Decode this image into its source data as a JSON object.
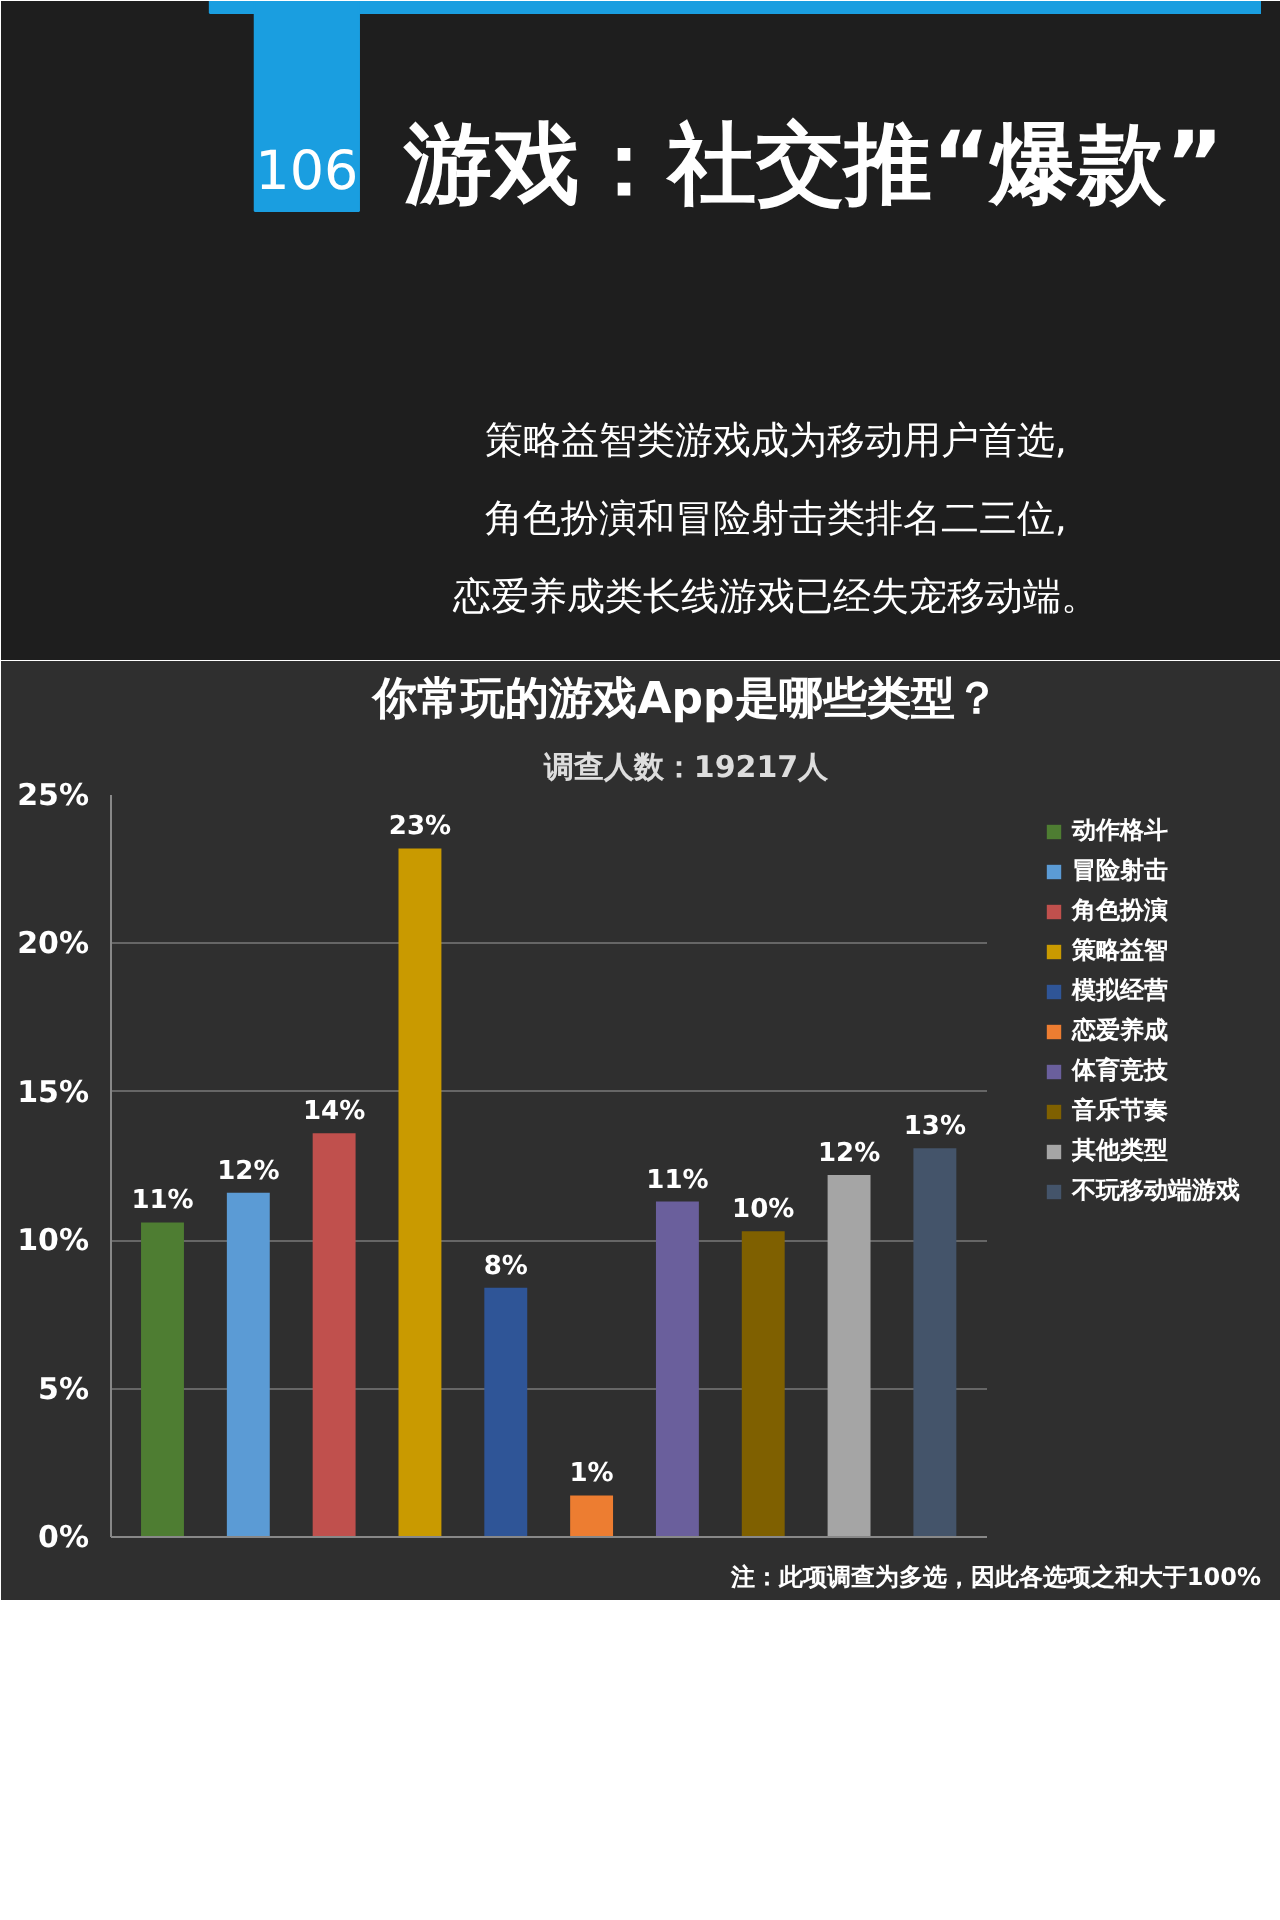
{
  "chart_data": {
    "type": "bar",
    "title": "你常玩的游戏App是哪些类型？",
    "subtitle": "调查人数：19217人",
    "annotations": [
      "106",
      "游戏：社交推“爆款”",
      "策略益智类游戏成为移动用户首选,",
      "角色扮演和冒险射击类排名二三位,",
      "恋爱养成类长线游戏已经失宠移动端。",
      "注：此项调查为多选，因此各选项之和大于100%"
    ],
    "categories": [
      null,
      null,
      null,
      null,
      null,
      null,
      null,
      null,
      null,
      null
    ],
    "series": [
      {
        "name": "动作格斗",
        "color": "#4e7d32",
        "values": [
          10.6,
          null,
          null,
          null,
          null,
          null,
          null,
          null,
          null,
          null
        ],
        "value_labels": [
          "11%",
          null,
          null,
          null,
          null,
          null,
          null,
          null,
          null,
          null
        ]
      },
      {
        "name": "冒险射击",
        "color": "#5b9bd5",
        "values": [
          null,
          11.6,
          null,
          null,
          null,
          null,
          null,
          null,
          null,
          null
        ],
        "value_labels": [
          null,
          "12%",
          null,
          null,
          null,
          null,
          null,
          null,
          null,
          null
        ]
      },
      {
        "name": "角色扮演",
        "color": "#c0504d",
        "values": [
          null,
          null,
          13.6,
          null,
          null,
          null,
          null,
          null,
          null,
          null
        ],
        "value_labels": [
          null,
          null,
          "14%",
          null,
          null,
          null,
          null,
          null,
          null,
          null
        ]
      },
      {
        "name": "策略益智",
        "color": "#c99a00",
        "values": [
          null,
          null,
          null,
          23.2,
          null,
          null,
          null,
          null,
          null,
          null
        ],
        "value_labels": [
          null,
          null,
          null,
          "23%",
          null,
          null,
          null,
          null,
          null,
          null
        ]
      },
      {
        "name": "模拟经营",
        "color": "#2f5597",
        "values": [
          null,
          null,
          null,
          null,
          8.4,
          null,
          null,
          null,
          null,
          null
        ],
        "value_labels": [
          null,
          null,
          null,
          null,
          "8%",
          null,
          null,
          null,
          null,
          null
        ]
      },
      {
        "name": "恋爱养成",
        "color": "#ed7d31",
        "values": [
          null,
          null,
          null,
          null,
          null,
          1.4,
          null,
          null,
          null,
          null
        ],
        "value_labels": [
          null,
          null,
          null,
          null,
          null,
          "1%",
          null,
          null,
          null,
          null
        ]
      },
      {
        "name": "体育竞技",
        "color": "#6a5f9c",
        "values": [
          null,
          null,
          null,
          null,
          null,
          null,
          11.3,
          null,
          null,
          null
        ],
        "value_labels": [
          null,
          null,
          null,
          null,
          null,
          null,
          "11%",
          null,
          null,
          null
        ]
      },
      {
        "name": "音乐节奏",
        "color": "#7f6000",
        "values": [
          null,
          null,
          null,
          null,
          null,
          null,
          null,
          10.3,
          null,
          null
        ],
        "value_labels": [
          null,
          null,
          null,
          null,
          null,
          null,
          null,
          "10%",
          null,
          null
        ]
      },
      {
        "name": "其他类型",
        "color": "#a5a5a5",
        "values": [
          null,
          null,
          null,
          null,
          null,
          null,
          null,
          null,
          12.2,
          null
        ],
        "value_labels": [
          null,
          null,
          null,
          null,
          null,
          null,
          null,
          null,
          "12%",
          null
        ]
      },
      {
        "name": "不玩移动端游戏",
        "color": "#44546a",
        "values": [
          null,
          null,
          null,
          null,
          null,
          null,
          null,
          null,
          null,
          13.1
        ],
        "value_labels": [
          null,
          null,
          null,
          null,
          null,
          null,
          null,
          null,
          null,
          "13%"
        ]
      }
    ],
    "ylim": [
      0,
      25
    ],
    "yticks": [
      {
        "value": 0,
        "label": "0%"
      },
      {
        "value": 5,
        "label": "5%"
      },
      {
        "value": 10,
        "label": "10%"
      },
      {
        "value": 15,
        "label": "15%"
      },
      {
        "value": 20,
        "label": "20%"
      },
      {
        "value": 25,
        "label": "25%"
      }
    ],
    "grid": "y",
    "legend": "right",
    "tick_labels": "y"
  }
}
